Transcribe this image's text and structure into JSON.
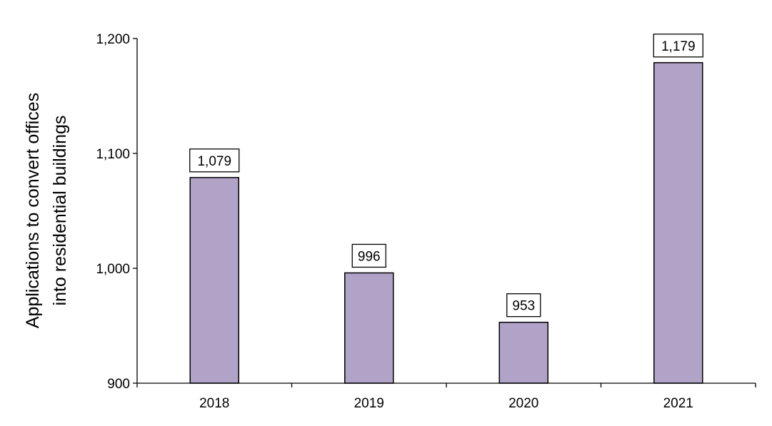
{
  "chart_data": {
    "type": "bar",
    "title": "",
    "xlabel": "",
    "ylabel_lines": [
      "Applications to convert offices",
      "into residential buildings"
    ],
    "categories": [
      "2018",
      "2019",
      "2020",
      "2021"
    ],
    "values": [
      1079,
      996,
      953,
      1179
    ],
    "value_labels": [
      "1,079",
      "996",
      "953",
      "1,179"
    ],
    "ylim": [
      900,
      1200
    ],
    "yticks": [
      900,
      1000,
      1100,
      1200
    ],
    "ytick_labels": [
      "900",
      "1,000",
      "1,100",
      "1,200"
    ],
    "grid": false,
    "legend": "none",
    "bar_color": "#b1a2c8",
    "bar_edge_color": "#000000"
  }
}
